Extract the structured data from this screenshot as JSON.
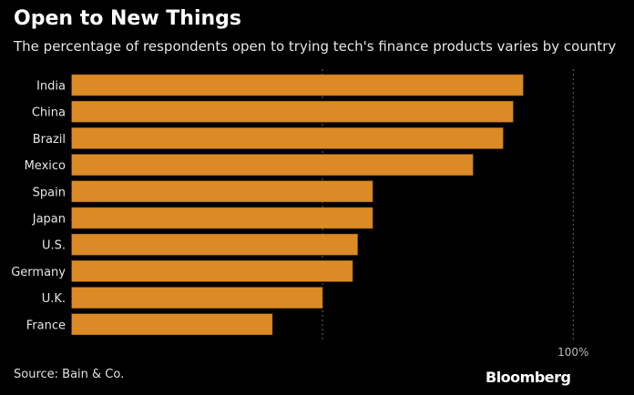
{
  "chart_data": {
    "type": "bar",
    "orientation": "horizontal",
    "title": "Open to New Things",
    "subtitle": "The percentage of respondents open to trying tech's finance products varies by country",
    "categories": [
      "India",
      "China",
      "Brazil",
      "Mexico",
      "Spain",
      "Japan",
      "U.S.",
      "Germany",
      "U.K.",
      "France"
    ],
    "values": [
      90,
      88,
      86,
      80,
      60,
      60,
      57,
      56,
      50,
      40
    ],
    "xlim": [
      0,
      100
    ],
    "gridlines": [
      50,
      100
    ],
    "tick_labels": [
      "100%"
    ],
    "bar_color": "#dc8a25",
    "background": "#000000",
    "source": "Source: Bain & Co.",
    "logo": "Bloomberg"
  }
}
